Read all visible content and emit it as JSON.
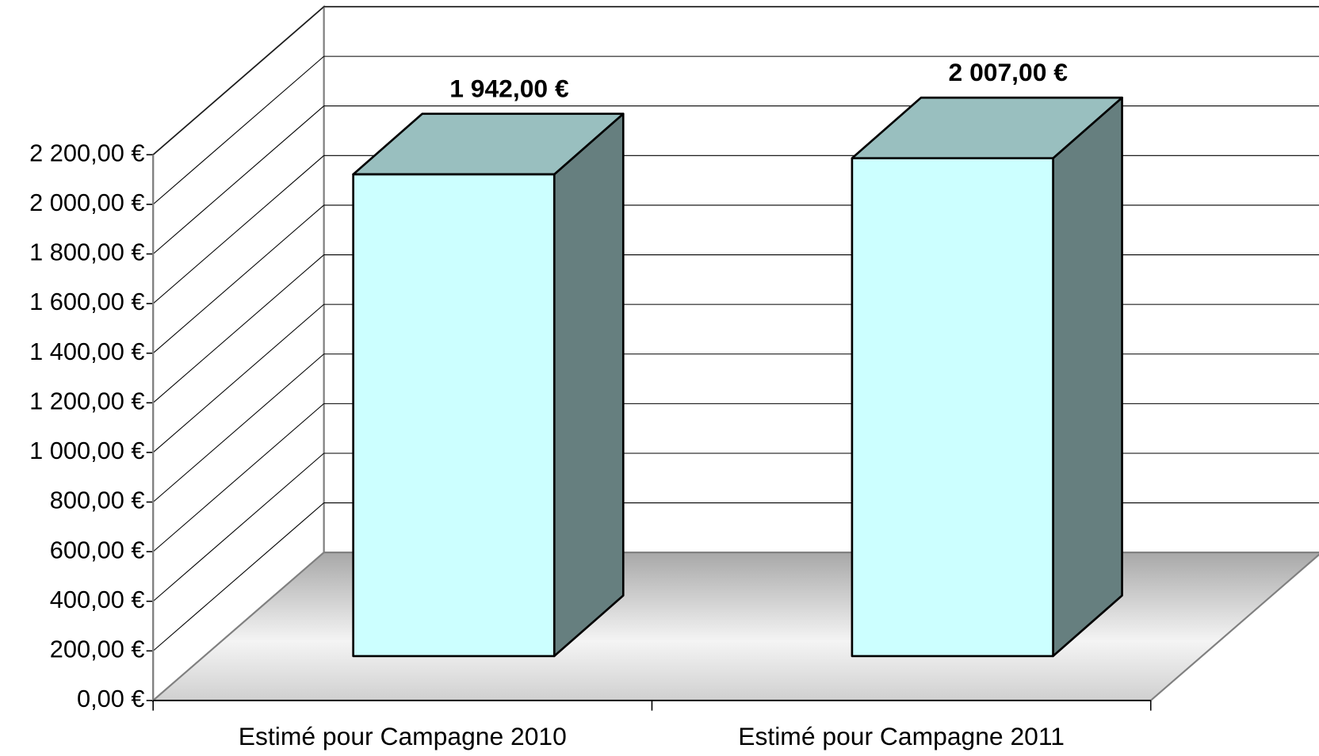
{
  "chart_data": {
    "type": "bar3d",
    "categories": [
      "Estimé pour Campagne 2010",
      "Estimé pour Campagne 2011"
    ],
    "values": [
      1942,
      2007
    ],
    "value_labels": [
      "1 942,00 €",
      "2 007,00 €"
    ],
    "colors": {
      "front": "#ccffff",
      "top": "#99bfbf",
      "side": "#667f7f"
    },
    "ylim": [
      0,
      2200
    ],
    "yticks": [
      {
        "value": 0,
        "label": "0,00 €"
      },
      {
        "value": 200,
        "label": "200,00 €"
      },
      {
        "value": 400,
        "label": "400,00 €"
      },
      {
        "value": 600,
        "label": "600,00 €"
      },
      {
        "value": 800,
        "label": "800,00 €"
      },
      {
        "value": 1000,
        "label": "1 000,00 €"
      },
      {
        "value": 1200,
        "label": "1 200,00 €"
      },
      {
        "value": 1400,
        "label": "1 400,00 €"
      },
      {
        "value": 1600,
        "label": "1 600,00 €"
      },
      {
        "value": 1800,
        "label": "1 800,00 €"
      },
      {
        "value": 2000,
        "label": "2 000,00 €"
      },
      {
        "value": 2200,
        "label": "2 200,00 €"
      }
    ],
    "grid": true
  }
}
